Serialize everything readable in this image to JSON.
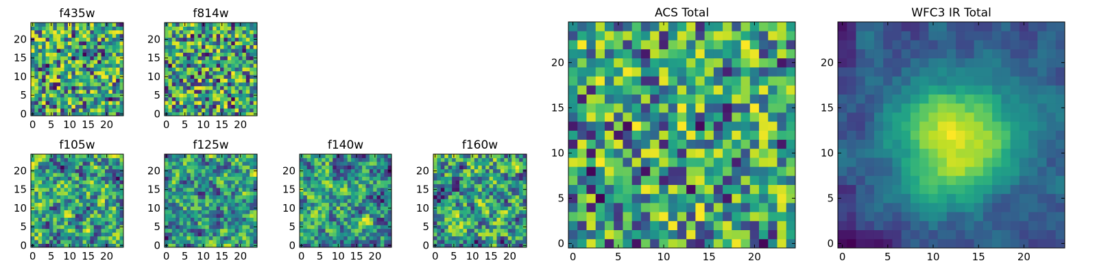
{
  "chart_data": [
    {
      "type": "heatmap",
      "title": "f435w",
      "colormap": "viridis",
      "grid_size": [
        25,
        25
      ],
      "xlim": [
        -0.5,
        24.5
      ],
      "ylim": [
        -0.5,
        24.5
      ],
      "xticks": [
        0,
        5,
        10,
        15,
        20
      ],
      "yticks": [
        0,
        5,
        10,
        15,
        20
      ],
      "texture": "fine-noise",
      "seed": 11,
      "values_note": ""
    },
    {
      "type": "heatmap",
      "title": "f814w",
      "colormap": "viridis",
      "grid_size": [
        25,
        25
      ],
      "xlim": [
        -0.5,
        24.5
      ],
      "ylim": [
        -0.5,
        24.5
      ],
      "xticks": [
        0,
        5,
        10,
        15,
        20
      ],
      "yticks": [
        0,
        5,
        10,
        15,
        20
      ],
      "texture": "fine-noise",
      "seed": 23,
      "values_note": ""
    },
    {
      "type": "heatmap",
      "title": "f105w",
      "colormap": "viridis",
      "grid_size": [
        25,
        25
      ],
      "xlim": [
        -0.5,
        24.5
      ],
      "ylim": [
        -0.5,
        24.5
      ],
      "xticks": [
        0,
        5,
        10,
        15,
        20
      ],
      "yticks": [
        0,
        5,
        10,
        15,
        20
      ],
      "texture": "smooth-noise",
      "seed": 37,
      "values_note": ""
    },
    {
      "type": "heatmap",
      "title": "f125w",
      "colormap": "viridis",
      "grid_size": [
        25,
        25
      ],
      "xlim": [
        -0.5,
        24.5
      ],
      "ylim": [
        -0.5,
        24.5
      ],
      "xticks": [
        0,
        5,
        10,
        15,
        20
      ],
      "yticks": [
        0,
        5,
        10,
        15,
        20
      ],
      "texture": "smooth-noise",
      "seed": 41,
      "values_note": ""
    },
    {
      "type": "heatmap",
      "title": "f140w",
      "colormap": "viridis",
      "grid_size": [
        25,
        25
      ],
      "xlim": [
        -0.5,
        24.5
      ],
      "ylim": [
        -0.5,
        24.5
      ],
      "xticks": [
        0,
        5,
        10,
        15,
        20
      ],
      "yticks": [
        0,
        5,
        10,
        15,
        20
      ],
      "texture": "smooth-noise",
      "seed": 53,
      "values_note": ""
    },
    {
      "type": "heatmap",
      "title": "f160w",
      "colormap": "viridis",
      "grid_size": [
        25,
        25
      ],
      "xlim": [
        -0.5,
        24.5
      ],
      "ylim": [
        -0.5,
        24.5
      ],
      "xticks": [
        0,
        5,
        10,
        15,
        20
      ],
      "yticks": [
        0,
        5,
        10,
        15,
        20
      ],
      "texture": "smooth-noise",
      "seed": 67,
      "values_note": ""
    },
    {
      "type": "heatmap",
      "title": "ACS Total",
      "colormap": "viridis",
      "grid_size": [
        25,
        25
      ],
      "xlim": [
        -0.5,
        24.5
      ],
      "ylim": [
        -0.5,
        24.5
      ],
      "xticks": [
        0,
        5,
        10,
        15,
        20
      ],
      "yticks": [
        0,
        5,
        10,
        15,
        20
      ],
      "texture": "fine-noise",
      "seed": 79,
      "values_note": ""
    },
    {
      "type": "heatmap",
      "title": "WFC3 IR Total",
      "colormap": "viridis",
      "grid_size": [
        25,
        25
      ],
      "xlim": [
        -0.5,
        24.5
      ],
      "ylim": [
        -0.5,
        24.5
      ],
      "xticks": [
        0,
        5,
        10,
        15,
        20
      ],
      "yticks": [
        0,
        5,
        10,
        15,
        20
      ],
      "texture": "central-source",
      "seed": 97,
      "values_note": ""
    }
  ]
}
